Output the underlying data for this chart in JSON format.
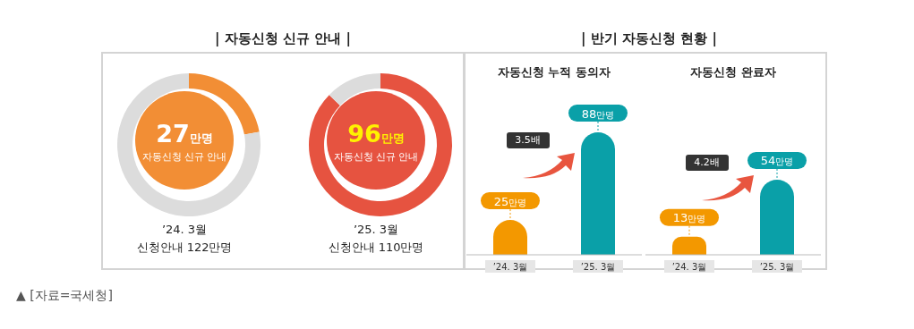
{
  "chart_data": [
    {
      "type": "donut",
      "title": "| 자동신청 신규 안내 |",
      "categories": [
        null,
        null
      ],
      "values": [
        22.1,
        77.9
      ],
      "colors": [
        "#f28e35",
        "#dcdcdc"
      ],
      "annotations": [
        "27만명",
        "자동신청 신규 안내",
        "’24. 3월",
        "신청안내 122만명",
        "▲ [자료=국세청]"
      ]
    },
    {
      "type": "donut",
      "categories": [
        null,
        null
      ],
      "values": [
        87.3,
        12.7
      ],
      "colors": [
        "#e65340",
        "#dcdcdc"
      ],
      "annotations": [
        "96만명",
        "자동신청 신규 안내",
        "’25. 3월",
        "신청안내 110만명"
      ]
    },
    {
      "type": "bar",
      "title": "| 반기 자동신청 현황 |",
      "subtitle": "자동신청 누적 동의자",
      "categories": [
        "’24. 3월",
        "’25. 3월"
      ],
      "values": [
        25,
        88
      ],
      "colors": [
        "#f39800",
        "#0aa0a8"
      ],
      "value_labels": [
        "25만명",
        "88만명"
      ],
      "annotations": [
        "3.5배"
      ]
    },
    {
      "type": "bar",
      "subtitle": "자동신청 완료자",
      "categories": [
        "’24. 3월",
        "’25. 3월"
      ],
      "values": [
        13,
        54
      ],
      "colors": [
        "#f39800",
        "#0aa0a8"
      ],
      "value_labels": [
        "13만명",
        "54만명"
      ],
      "annotations": [
        "4.2배"
      ]
    }
  ]
}
